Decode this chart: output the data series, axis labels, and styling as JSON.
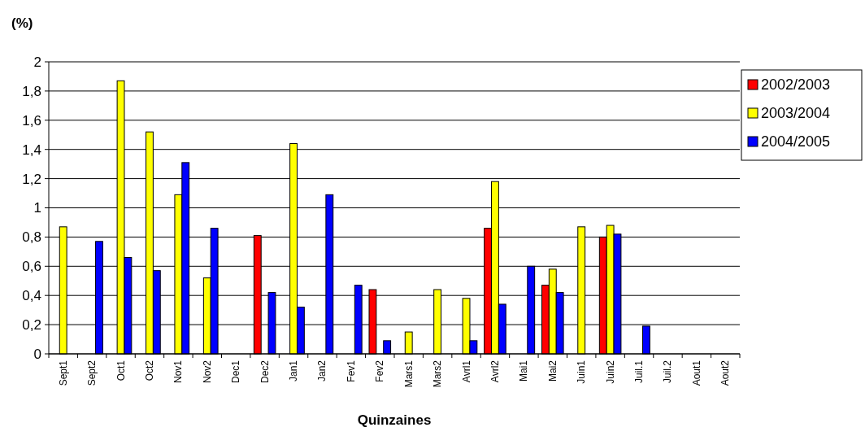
{
  "chart_data": {
    "type": "bar",
    "xlabel": "Quinzaines",
    "ylabel": "(%)",
    "categories": [
      "Sept1",
      "Sept2",
      "Oct1",
      "Oct2",
      "Nov1",
      "Nov2",
      "Dec1",
      "Dec2",
      "Jan1",
      "Jan2",
      "Fev1",
      "Fev2",
      "Mars1",
      "Mars2",
      "Avrl1",
      "Avrl2",
      "Mai1",
      "Mai2",
      "Juin1",
      "Juin2",
      "Juil.1",
      "Juil.2",
      "Aout1",
      "Aout2"
    ],
    "series": [
      {
        "name": "2002/2003",
        "color": "#ff0000",
        "values": [
          null,
          null,
          null,
          null,
          null,
          null,
          null,
          0.81,
          null,
          null,
          null,
          0.44,
          null,
          null,
          null,
          0.86,
          null,
          0.47,
          null,
          0.8,
          null,
          null,
          null,
          null
        ]
      },
      {
        "name": "2003/2004",
        "color": "#ffff00",
        "values": [
          0.87,
          null,
          1.87,
          1.52,
          1.09,
          0.52,
          null,
          null,
          1.44,
          null,
          null,
          null,
          0.15,
          0.44,
          0.38,
          1.18,
          null,
          0.58,
          0.87,
          0.88,
          null,
          null,
          null,
          null
        ]
      },
      {
        "name": "2004/2005",
        "color": "#0000ff",
        "values": [
          null,
          0.77,
          0.66,
          0.57,
          1.31,
          0.86,
          null,
          0.42,
          0.32,
          1.09,
          0.47,
          0.09,
          null,
          null,
          0.09,
          0.34,
          0.6,
          0.42,
          null,
          0.82,
          0.19,
          null,
          null,
          null
        ]
      }
    ],
    "ylim": [
      0,
      2
    ],
    "yticks": [
      0,
      {
        "value": 0.2,
        "label": "0,2"
      },
      {
        "value": 0.4,
        "label": "0,4"
      },
      {
        "value": 0.6,
        "label": "0,6"
      },
      {
        "value": 0.8,
        "label": "0,8"
      },
      1,
      {
        "value": 1.2,
        "label": "1,2"
      },
      {
        "value": 1.4,
        "label": "1,4"
      },
      {
        "value": 1.6,
        "label": "1,6"
      },
      {
        "value": 1.8,
        "label": "1,8"
      },
      2
    ],
    "grid": "y",
    "legend": "top right"
  }
}
